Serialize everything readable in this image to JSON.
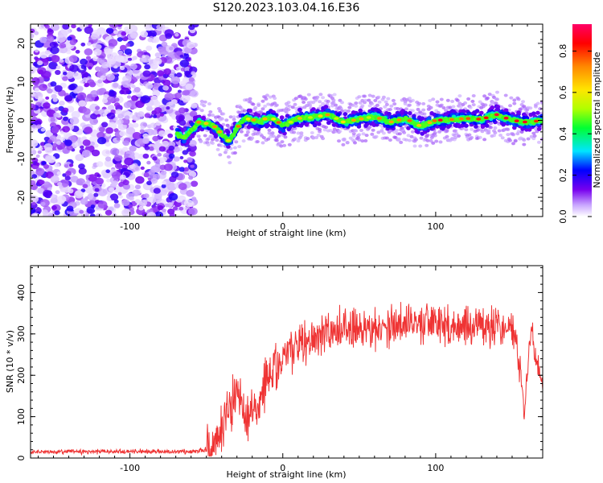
{
  "title": "S120.2023.103.04.16.E36",
  "colors": {
    "snr_line": "#ef3434",
    "frame": "#000000",
    "background": "#ffffff"
  },
  "chart_data": [
    {
      "type": "heatmap",
      "xlabel": "Height of straight line (km)",
      "ylabel": "Frequency (Hz)",
      "xlim": [
        -165,
        170
      ],
      "ylim": [
        -25,
        25
      ],
      "x_ticks": [
        -100,
        0,
        100
      ],
      "y_ticks": [
        -20,
        -10,
        0,
        10,
        20
      ],
      "colorbar": {
        "label": "Normalized spectral amplitude",
        "range": [
          0.0,
          0.93
        ],
        "ticks": [
          0.0,
          0.2,
          0.4,
          0.6,
          0.8
        ],
        "tick_labels": [
          "0.0",
          "0.2",
          "0.4",
          "0.6",
          "0.8"
        ],
        "colormap": [
          "#ffffff",
          "#c9a6ff",
          "#7700ee",
          "#0000ff",
          "#00e5ff",
          "#00ff33",
          "#b0ff00",
          "#ffe500",
          "#ff8800",
          "#ff0000",
          "#ff0066"
        ]
      },
      "noise_region_x": [
        -165,
        -57
      ],
      "signal_trace": {
        "x": [
          -70,
          -65,
          -60,
          -55,
          -50,
          -45,
          -40,
          -35,
          -30,
          -25,
          -20,
          -15,
          -10,
          -5,
          0,
          10,
          20,
          30,
          40,
          50,
          60,
          70,
          80,
          90,
          100,
          110,
          120,
          130,
          140,
          150,
          160,
          170
        ],
        "y": [
          -3.5,
          -4.5,
          -2.5,
          -0.5,
          -0.8,
          -1.5,
          -3.5,
          -5.5,
          -2.0,
          0.5,
          0.2,
          -0.5,
          0.8,
          0.2,
          -1.5,
          0.5,
          0.8,
          1.5,
          -0.5,
          0.3,
          1.0,
          -0.5,
          0.5,
          -1.5,
          0.0,
          0.2,
          0.5,
          0.3,
          1.5,
          0.0,
          -0.5,
          0.0
        ]
      }
    },
    {
      "type": "line",
      "xlabel": "Height of straight line (km)",
      "ylabel": "SNR (10 * v/v)",
      "xlim": [
        -165,
        170
      ],
      "ylim": [
        0,
        465
      ],
      "x_ticks": [
        -100,
        0,
        100
      ],
      "y_ticks": [
        0,
        100,
        200,
        300,
        400
      ],
      "series": [
        {
          "x": [
            -165,
            -60,
            -50,
            -45,
            -40,
            -35,
            -30,
            -25,
            -20,
            -15,
            -10,
            0,
            10,
            20,
            30,
            40,
            50,
            60,
            70,
            80,
            90,
            100,
            110,
            120,
            130,
            140,
            150,
            155,
            158,
            160,
            163,
            165,
            170
          ],
          "y": [
            15,
            16,
            20,
            35,
            70,
            120,
            170,
            110,
            100,
            130,
            195,
            240,
            270,
            280,
            300,
            315,
            315,
            315,
            320,
            325,
            325,
            325,
            315,
            320,
            320,
            320,
            320,
            230,
            110,
            220,
            310,
            250,
            180
          ]
        }
      ]
    }
  ]
}
